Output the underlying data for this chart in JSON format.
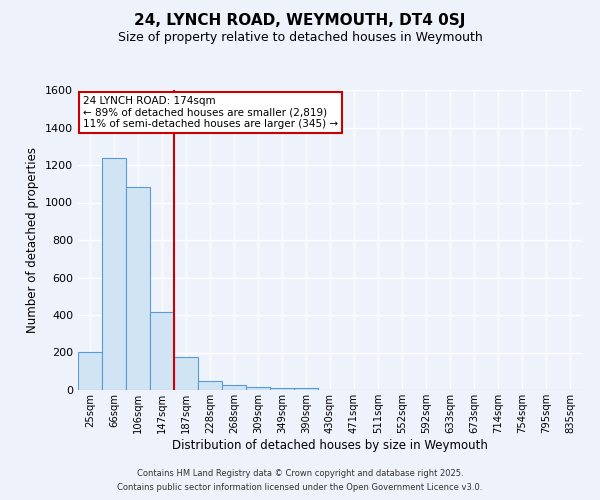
{
  "title": "24, LYNCH ROAD, WEYMOUTH, DT4 0SJ",
  "subtitle": "Size of property relative to detached houses in Weymouth",
  "xlabel": "Distribution of detached houses by size in Weymouth",
  "ylabel": "Number of detached properties",
  "bar_color": "#d0e4f4",
  "bar_edge_color": "#5b9bd5",
  "background_color": "#eef2fb",
  "grid_color": "#ffffff",
  "categories": [
    "25sqm",
    "66sqm",
    "106sqm",
    "147sqm",
    "187sqm",
    "228sqm",
    "268sqm",
    "309sqm",
    "349sqm",
    "390sqm",
    "430sqm",
    "471sqm",
    "511sqm",
    "552sqm",
    "592sqm",
    "633sqm",
    "673sqm",
    "714sqm",
    "754sqm",
    "795sqm",
    "835sqm"
  ],
  "values": [
    205,
    1235,
    1085,
    415,
    175,
    50,
    25,
    15,
    10,
    10,
    0,
    0,
    0,
    0,
    0,
    0,
    0,
    0,
    0,
    0,
    0
  ],
  "ylim": [
    0,
    1600
  ],
  "yticks": [
    0,
    200,
    400,
    600,
    800,
    1000,
    1200,
    1400,
    1600
  ],
  "vline_x_index": 4,
  "vline_color": "#cc0000",
  "annotation_title": "24 LYNCH ROAD: 174sqm",
  "annotation_line1": "← 89% of detached houses are smaller (2,819)",
  "annotation_line2": "11% of semi-detached houses are larger (345) →",
  "annotation_box_color": "#ffffff",
  "annotation_box_edge": "#cc0000",
  "footer1": "Contains HM Land Registry data © Crown copyright and database right 2025.",
  "footer2": "Contains public sector information licensed under the Open Government Licence v3.0."
}
